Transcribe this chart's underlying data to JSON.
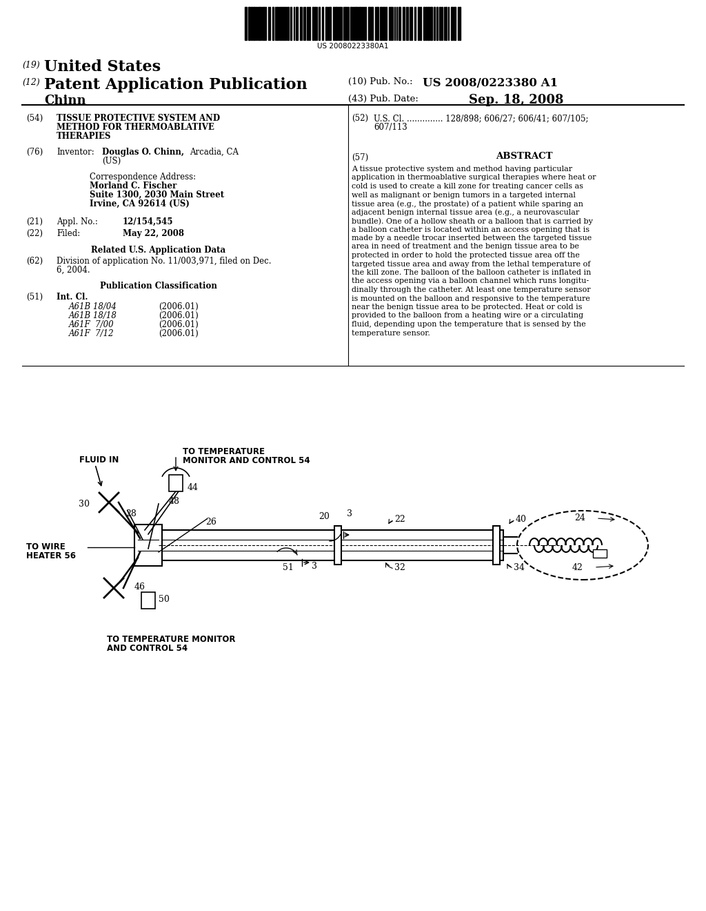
{
  "background_color": "#ffffff",
  "barcode_text": "US 20080223380A1",
  "patent_number_label": "(19)",
  "patent_title_line1": "United States",
  "patent_type_label": "(12)",
  "patent_type": "Patent Application Publication",
  "pub_no_label": "(10) Pub. No.:",
  "pub_no": "US 2008/0223380 A1",
  "pub_date_label": "(43) Pub. Date:",
  "pub_date": "Sep. 18, 2008",
  "inventor_surname": "Chinn",
  "section54_label": "(54)",
  "section54_line1": "TISSUE PROTECTIVE SYSTEM AND",
  "section54_line2": "METHOD FOR THERMOABLATIVE",
  "section54_line3": "THERAPIES",
  "section52_label": "(52)",
  "section52_line1": "U.S. Cl. .............. 128/898; 606/27; 606/41; 607/105;",
  "section52_line2": "607/113",
  "section76_label": "(76)",
  "section76_title": "Inventor:",
  "section76_name": "Douglas O. Chinn,",
  "section76_loc": "Arcadia, CA",
  "section76_country": "(US)",
  "corr_address_header": "Correspondence Address:",
  "corr_name": "Morland C. Fischer",
  "corr_street": "Suite 1300, 2030 Main Street",
  "corr_city": "Irvine, CA 92614 (US)",
  "section57_label": "(57)",
  "section57_title": "ABSTRACT",
  "abstract_lines": [
    "A tissue protective system and method having particular",
    "application in thermoablative surgical therapies where heat or",
    "cold is used to create a kill zone for treating cancer cells as",
    "well as malignant or benign tumors in a targeted internal",
    "tissue area (e.g., the prostate) of a patient while sparing an",
    "adjacent benign internal tissue area (e.g., a neurovascular",
    "bundle). One of a hollow sheath or a balloon that is carried by",
    "a balloon catheter is located within an access opening that is",
    "made by a needle trocar inserted between the targeted tissue",
    "area in need of treatment and the benign tissue area to be",
    "protected in order to hold the protected tissue area off the",
    "targeted tissue area and away from the lethal temperature of",
    "the kill zone. The balloon of the balloon catheter is inflated in",
    "the access opening via a balloon channel which runs longitu-",
    "dinally through the catheter. At least one temperature sensor",
    "is mounted on the balloon and responsive to the temperature",
    "near the benign tissue area to be protected. Heat or cold is",
    "provided to the balloon from a heating wire or a circulating",
    "fluid, depending upon the temperature that is sensed by the",
    "temperature sensor."
  ],
  "section21_label": "(21)",
  "section21_appl": "Appl. No.:",
  "section21_val": "12/154,545",
  "section22_label": "(22)",
  "section22_filed": "Filed:",
  "section22_val": "May 22, 2008",
  "related_data_header": "Related U.S. Application Data",
  "section62_label": "(62)",
  "section62_line1": "Division of application No. 11/003,971, filed on Dec.",
  "section62_line2": "6, 2004.",
  "pub_class_header": "Publication Classification",
  "section51_label": "(51)",
  "int_cl_label": "Int. Cl.",
  "int_cl_entries": [
    [
      "A61B 18/04",
      "(2006.01)"
    ],
    [
      "A61B 18/18",
      "(2006.01)"
    ],
    [
      "A61F  7/00",
      "(2006.01)"
    ],
    [
      "A61F  7/12",
      "(2006.01)"
    ]
  ]
}
